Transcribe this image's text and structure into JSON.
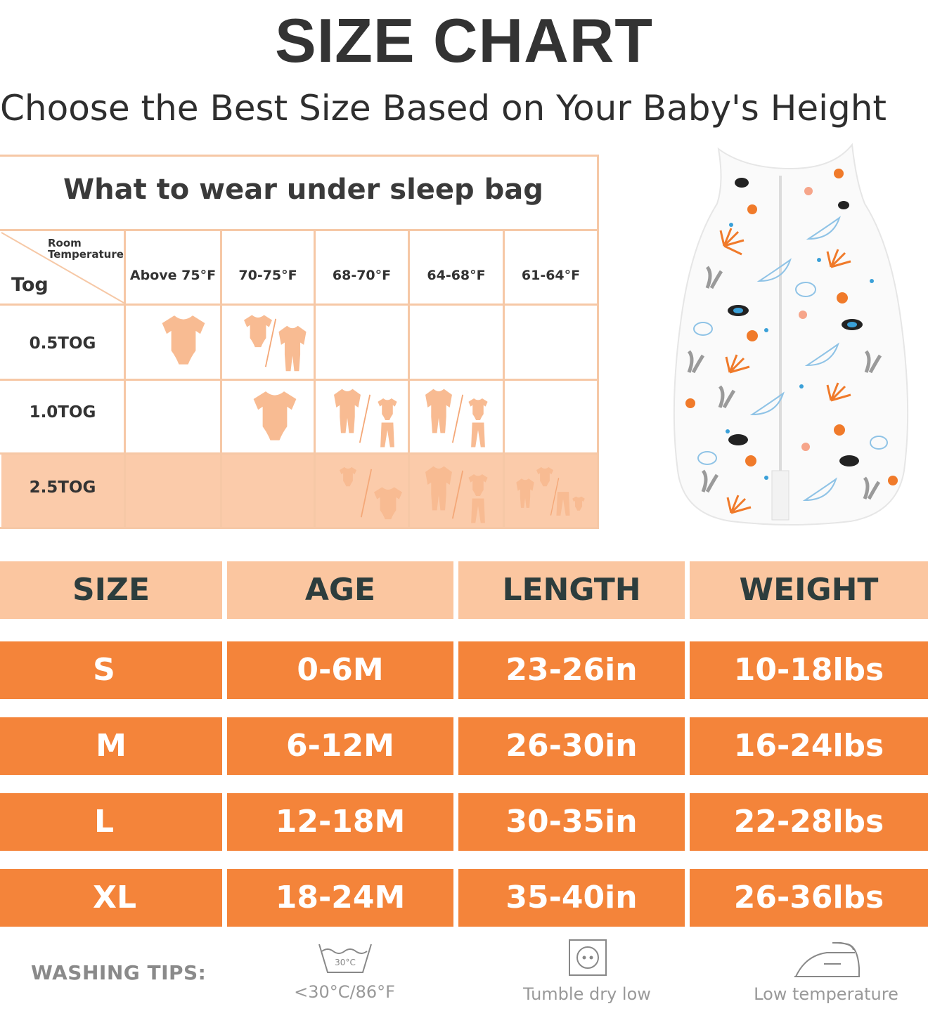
{
  "header": {
    "title": "SIZE CHART",
    "subtitle": "Choose the Best Size Based on Your Baby's Height"
  },
  "tog_table": {
    "heading": "What to wear under sleep bag",
    "corner_room": "Room",
    "corner_temperature": "Temperature",
    "corner_tog": "Tog",
    "temperatures": [
      "Above 75°F",
      "70-75°F",
      "68-70°F",
      "64-68°F",
      "61-64°F"
    ],
    "tog_rows": [
      "0.5TOG",
      "1.0TOG",
      "2.5TOG"
    ],
    "highlight_color": "#fbcbaa",
    "line_color": "#f6c8a6"
  },
  "size_table": {
    "headers": [
      "SIZE",
      "AGE",
      "LENGTH",
      "WEIGHT"
    ],
    "rows": [
      [
        "S",
        "0-6M",
        "23-26in",
        "10-18lbs"
      ],
      [
        "M",
        "6-12M",
        "26-30in",
        "16-24lbs"
      ],
      [
        "L",
        "12-18M",
        "30-35in",
        "22-28lbs"
      ],
      [
        "XL",
        "18-24M",
        "35-40in",
        "26-36lbs"
      ]
    ],
    "header_color": "#fbc6a0",
    "cell_color": "#f4843a"
  },
  "washing": {
    "label": "WASHING TIPS:",
    "wash_icon_text": "30°C",
    "tips": [
      "<30°C/86°F",
      "Tumble dry low",
      "Low temperature"
    ],
    "icons": [
      "wash-30-icon",
      "tumble-dry-icon",
      "iron-icon"
    ]
  }
}
